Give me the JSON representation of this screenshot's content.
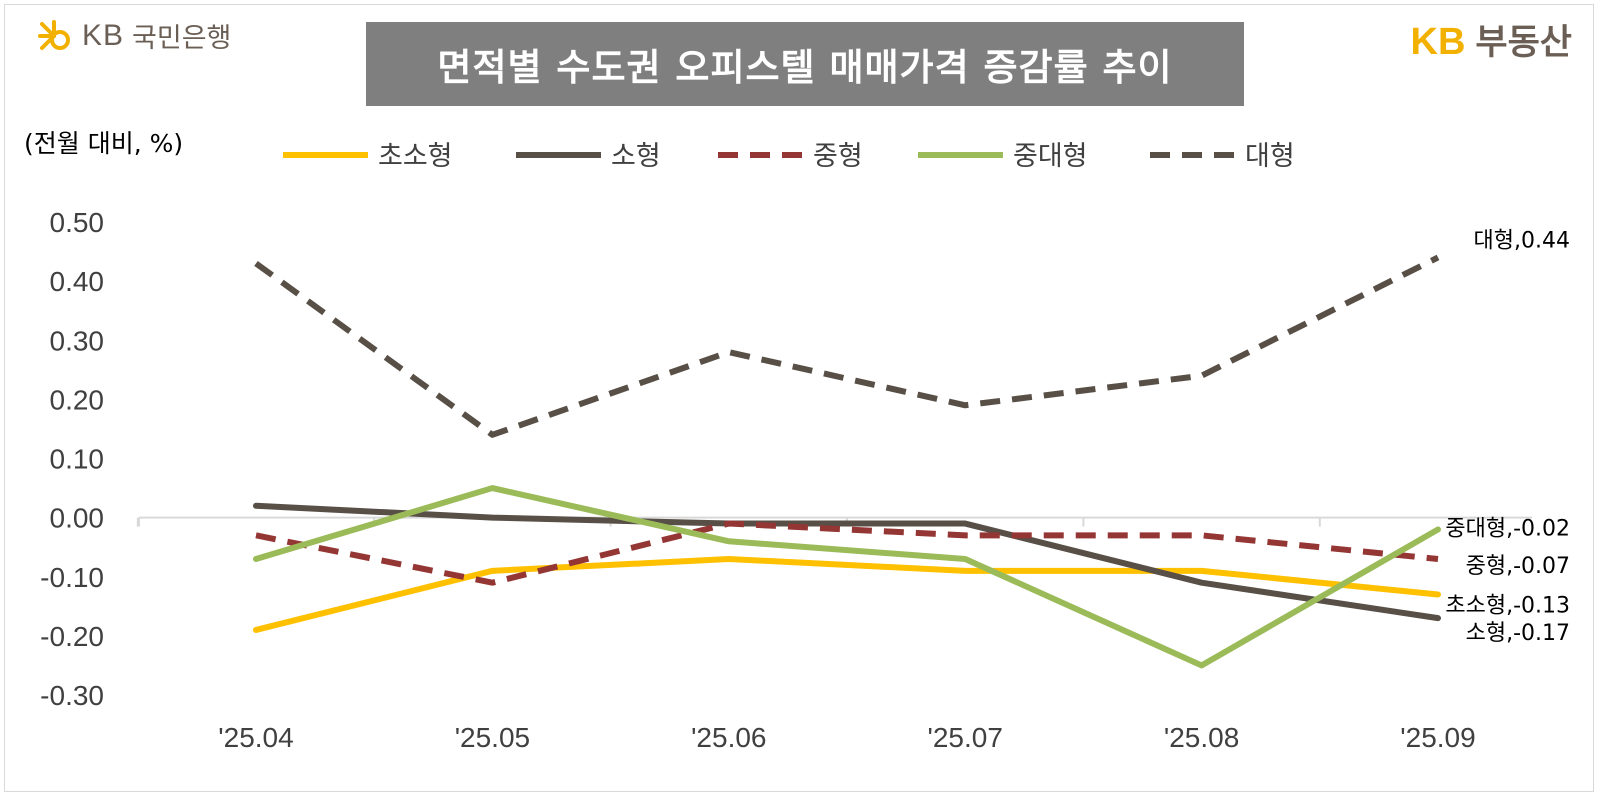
{
  "header": {
    "bank_name": "국민은행",
    "bank_kb": "KB",
    "land_kb": "KB",
    "land_name": "부동산",
    "title": "면적별 수도권 오피스텔 매매가격 증감률 추이",
    "unit": "(전월 대비, %)"
  },
  "colors": {
    "초소형": "#FFC000",
    "소형": "#584F47",
    "중형": "#943634",
    "중대형": "#9BBB59",
    "대형": "#584F47",
    "axis": "#d9d9d9",
    "title_bg": "#7f7f7f",
    "brand_yellow": "#f2b100"
  },
  "chart_data": {
    "type": "line",
    "title": "면적별 수도권 오피스텔 매매가격 증감률 추이",
    "ylabel": "(전월 대비, %)",
    "xlabel": "",
    "categories": [
      "'25.04",
      "'25.05",
      "'25.06",
      "'25.07",
      "'25.08",
      "'25.09"
    ],
    "ylim": [
      -0.3,
      0.5
    ],
    "yticks": [
      0.5,
      0.4,
      0.3,
      0.2,
      0.1,
      0.0,
      -0.1,
      -0.2,
      -0.3
    ],
    "ytick_labels": [
      "0.50",
      "0.40",
      "0.30",
      "0.20",
      "0.10",
      "0.00",
      "-0.10",
      "-0.20",
      "-0.30"
    ],
    "grid": false,
    "legend": "top",
    "series": [
      {
        "name": "초소형",
        "values": [
          -0.19,
          -0.09,
          -0.07,
          -0.09,
          -0.09,
          -0.13
        ],
        "dash": false,
        "end_label": "초소형,-0.13"
      },
      {
        "name": "소형",
        "values": [
          0.02,
          0.0,
          -0.01,
          -0.01,
          -0.11,
          -0.17
        ],
        "dash": false,
        "end_label": "소형,-0.17"
      },
      {
        "name": "중형",
        "values": [
          -0.03,
          -0.11,
          -0.01,
          -0.03,
          -0.03,
          -0.07
        ],
        "dash": true,
        "end_label": "중형,-0.07"
      },
      {
        "name": "중대형",
        "values": [
          -0.07,
          0.05,
          -0.04,
          -0.07,
          -0.25,
          -0.02
        ],
        "dash": false,
        "end_label": "중대형,-0.02"
      },
      {
        "name": "대형",
        "values": [
          0.43,
          0.14,
          0.28,
          0.19,
          0.24,
          0.44
        ],
        "dash": true,
        "end_label": "대형,0.44"
      }
    ]
  }
}
